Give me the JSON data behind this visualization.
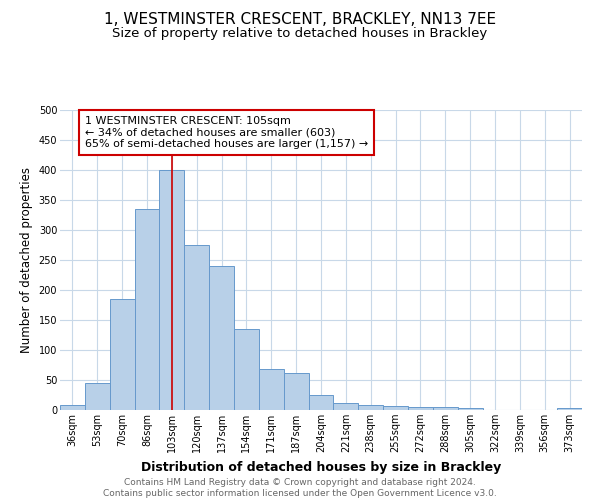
{
  "title": "1, WESTMINSTER CRESCENT, BRACKLEY, NN13 7EE",
  "subtitle": "Size of property relative to detached houses in Brackley",
  "xlabel": "Distribution of detached houses by size in Brackley",
  "ylabel": "Number of detached properties",
  "categories": [
    "36sqm",
    "53sqm",
    "70sqm",
    "86sqm",
    "103sqm",
    "120sqm",
    "137sqm",
    "154sqm",
    "171sqm",
    "187sqm",
    "204sqm",
    "221sqm",
    "238sqm",
    "255sqm",
    "272sqm",
    "288sqm",
    "305sqm",
    "322sqm",
    "339sqm",
    "356sqm",
    "373sqm"
  ],
  "values": [
    8,
    45,
    185,
    335,
    400,
    275,
    240,
    135,
    68,
    62,
    25,
    12,
    8,
    6,
    5,
    5,
    4,
    0,
    0,
    0,
    4
  ],
  "bar_color": "#b8d0e8",
  "bar_edge_color": "#6699cc",
  "vline_index": 4,
  "vline_color": "#cc0000",
  "annotation_lines": [
    "1 WESTMINSTER CRESCENT: 105sqm",
    "← 34% of detached houses are smaller (603)",
    "65% of semi-detached houses are larger (1,157) →"
  ],
  "annotation_box_color": "#ffffff",
  "annotation_box_edge": "#cc0000",
  "ylim": [
    0,
    500
  ],
  "grid_color": "#c8d8e8",
  "background_color": "#ffffff",
  "footer_line1": "Contains HM Land Registry data © Crown copyright and database right 2024.",
  "footer_line2": "Contains public sector information licensed under the Open Government Licence v3.0.",
  "title_fontsize": 11,
  "subtitle_fontsize": 9.5,
  "xlabel_fontsize": 9,
  "ylabel_fontsize": 8.5,
  "tick_fontsize": 7,
  "annotation_fontsize": 8,
  "footer_fontsize": 6.5
}
